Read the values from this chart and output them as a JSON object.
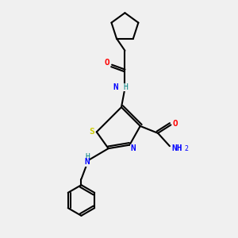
{
  "background_color": "#f0f0f0",
  "atom_colors": {
    "C": "#000000",
    "N": "#0000ff",
    "O": "#ff0000",
    "S": "#cccc00",
    "H": "#008080"
  },
  "bond_color": "#000000",
  "bond_width": 1.5,
  "figsize": [
    3.0,
    3.0
  ],
  "dpi": 100
}
